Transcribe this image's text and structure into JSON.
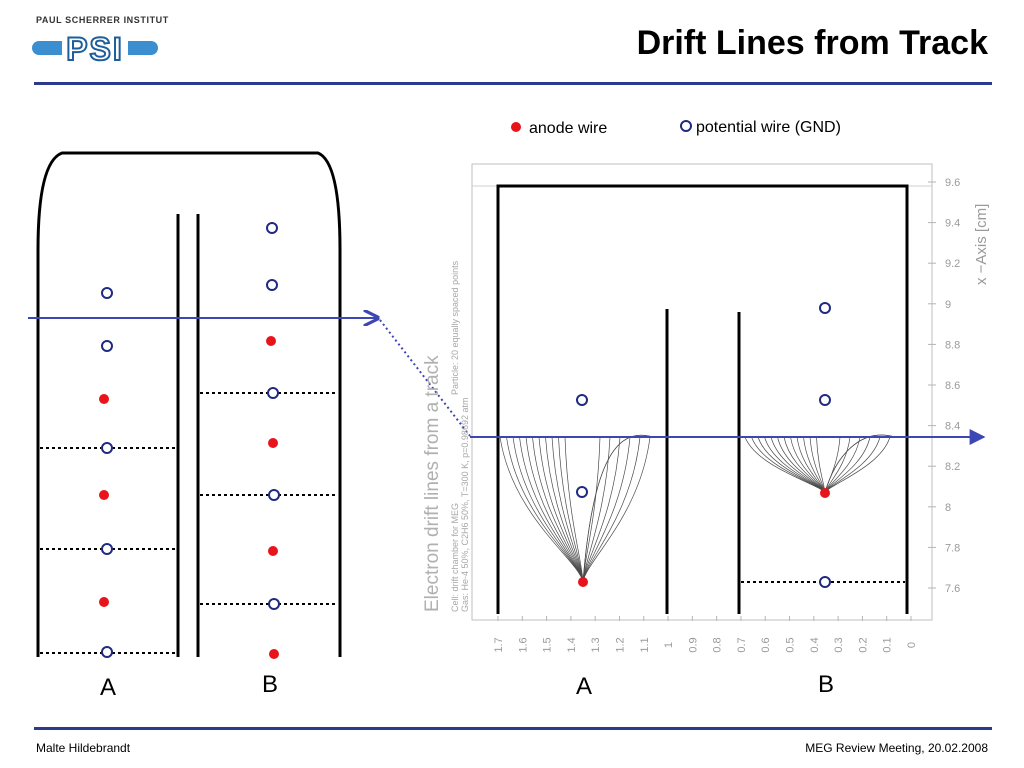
{
  "header": {
    "institute": "PAUL SCHERRER INSTITUT",
    "logo_letters": "PSI",
    "title": "Drift Lines from Track"
  },
  "legend": {
    "anode": "anode wire",
    "potential": "potential wire (GND)"
  },
  "labels": {
    "left_a": "A",
    "left_b": "B",
    "right_a": "A",
    "right_b": "B"
  },
  "plot": {
    "title": "Electron drift lines from a track",
    "info_1": "Cell: drift chamber for MEG",
    "info_2": "Gas: He-4 50%, C2H6 50%, T=300 K, p=0.98692 atm",
    "info_3": "Particle: 20 equally spaced points",
    "y_axis_label": "x −Axis [cm]",
    "y_ticks": [
      "9.6",
      "9.4",
      "9.2",
      "9",
      "8.8",
      "8.6",
      "8.4",
      "8.2",
      "8",
      "7.8",
      "7.6"
    ],
    "x_ticks": [
      "1.7",
      "1.6",
      "1.5",
      "1.4",
      "1.3",
      "1.2",
      "1.1",
      "1",
      "0.9",
      "0.8",
      "0.7",
      "0.6",
      "0.5",
      "0.4",
      "0.3",
      "0.2",
      "0.1",
      "0"
    ]
  },
  "colors": {
    "anode": "#e8141b",
    "potential": "#1f2a80",
    "arrow": "#3d46b5",
    "rule": "#2b3a8f"
  },
  "footer": {
    "author": "Malte Hildebrandt",
    "event": "MEG Review Meeting, 20.02.2008"
  }
}
